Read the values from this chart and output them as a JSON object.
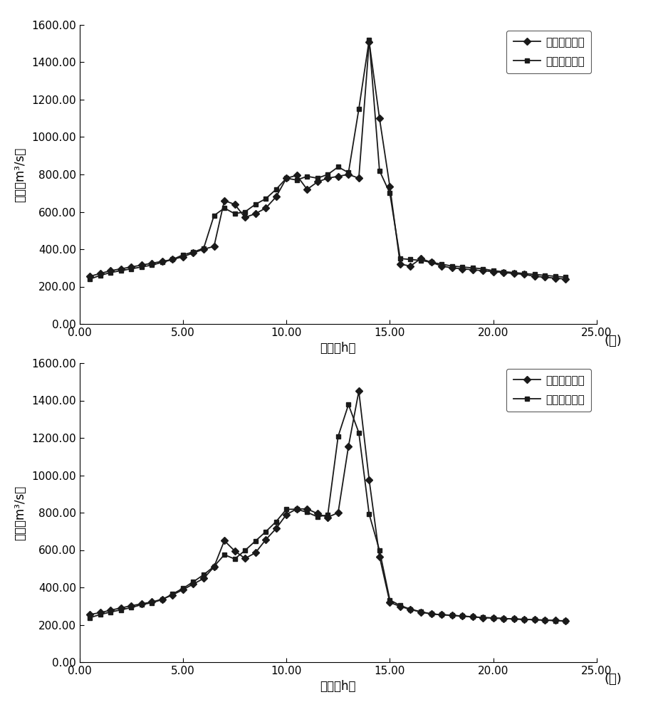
{
  "chart_a": {
    "measured_x": [
      0.5,
      1.0,
      1.5,
      2.0,
      2.5,
      3.0,
      3.5,
      4.0,
      4.5,
      5.0,
      5.5,
      6.0,
      6.5,
      7.0,
      7.5,
      8.0,
      8.5,
      9.0,
      9.5,
      10.0,
      10.5,
      11.0,
      11.5,
      12.0,
      12.5,
      13.0,
      13.5,
      14.0,
      14.5,
      15.0,
      15.5,
      16.0,
      16.5,
      17.0,
      17.5,
      18.0,
      18.5,
      19.0,
      19.5,
      20.0,
      20.5,
      21.0,
      21.5,
      22.0,
      22.5,
      23.0,
      23.5
    ],
    "measured_y": [
      255,
      270,
      285,
      295,
      305,
      315,
      325,
      335,
      345,
      360,
      380,
      400,
      415,
      660,
      640,
      570,
      590,
      620,
      680,
      780,
      795,
      720,
      760,
      780,
      790,
      800,
      780,
      1510,
      1100,
      735,
      320,
      310,
      350,
      330,
      310,
      300,
      295,
      290,
      285,
      280,
      275,
      270,
      265,
      255,
      250,
      245,
      240
    ],
    "predicted_x": [
      0.5,
      1.0,
      1.5,
      2.0,
      2.5,
      3.0,
      3.5,
      4.0,
      4.5,
      5.0,
      5.5,
      6.0,
      6.5,
      7.0,
      7.5,
      8.0,
      8.5,
      9.0,
      9.5,
      10.0,
      10.5,
      11.0,
      11.5,
      12.0,
      12.5,
      13.0,
      13.5,
      14.0,
      14.5,
      15.0,
      15.5,
      16.0,
      16.5,
      17.0,
      17.5,
      18.0,
      18.5,
      19.0,
      19.5,
      20.0,
      20.5,
      21.0,
      21.5,
      22.0,
      22.5,
      23.0,
      23.5
    ],
    "predicted_y": [
      240,
      260,
      275,
      285,
      295,
      305,
      315,
      330,
      345,
      370,
      385,
      405,
      580,
      620,
      590,
      600,
      640,
      670,
      720,
      780,
      770,
      790,
      780,
      800,
      840,
      810,
      1150,
      1520,
      820,
      700,
      350,
      345,
      340,
      330,
      320,
      310,
      305,
      300,
      295,
      285,
      280,
      275,
      270,
      265,
      260,
      255,
      250
    ]
  },
  "chart_b": {
    "measured_x": [
      0.5,
      1.0,
      1.5,
      2.0,
      2.5,
      3.0,
      3.5,
      4.0,
      4.5,
      5.0,
      5.5,
      6.0,
      6.5,
      7.0,
      7.5,
      8.0,
      8.5,
      9.0,
      9.5,
      10.0,
      10.5,
      11.0,
      11.5,
      12.0,
      12.5,
      13.0,
      13.5,
      14.0,
      14.5,
      15.0,
      15.5,
      16.0,
      16.5,
      17.0,
      17.5,
      18.0,
      18.5,
      19.0,
      19.5,
      20.0,
      20.5,
      21.0,
      21.5,
      22.0,
      22.5,
      23.0,
      23.5
    ],
    "measured_y": [
      255,
      265,
      278,
      290,
      302,
      312,
      322,
      337,
      360,
      388,
      418,
      448,
      510,
      650,
      595,
      555,
      585,
      655,
      715,
      790,
      820,
      820,
      795,
      775,
      800,
      1155,
      1450,
      975,
      565,
      320,
      298,
      282,
      268,
      258,
      254,
      250,
      246,
      242,
      238,
      236,
      233,
      231,
      229,
      227,
      225,
      223,
      221
    ],
    "predicted_x": [
      0.5,
      1.0,
      1.5,
      2.0,
      2.5,
      3.0,
      3.5,
      4.0,
      4.5,
      5.0,
      5.5,
      6.0,
      6.5,
      7.0,
      7.5,
      8.0,
      8.5,
      9.0,
      9.5,
      10.0,
      10.5,
      11.0,
      11.5,
      12.0,
      12.5,
      13.0,
      13.5,
      14.0,
      14.5,
      15.0,
      15.5,
      16.0,
      16.5,
      17.0,
      17.5,
      18.0,
      18.5,
      19.0,
      19.5,
      20.0,
      20.5,
      21.0,
      21.5,
      22.0,
      22.5,
      23.0,
      23.5
    ],
    "predicted_y": [
      238,
      255,
      268,
      280,
      292,
      308,
      318,
      335,
      365,
      395,
      430,
      468,
      512,
      575,
      552,
      598,
      648,
      698,
      752,
      818,
      818,
      802,
      778,
      788,
      1208,
      1378,
      1228,
      792,
      598,
      333,
      303,
      283,
      270,
      258,
      254,
      251,
      247,
      243,
      239,
      237,
      234,
      231,
      229,
      227,
      225,
      222,
      220
    ]
  },
  "xlim": [
    0,
    25
  ],
  "ylim": [
    0,
    1600
  ],
  "xticks": [
    0.0,
    5.0,
    10.0,
    15.0,
    20.0,
    25.0
  ],
  "yticks": [
    0.0,
    200.0,
    400.0,
    600.0,
    800.0,
    1000.0,
    1200.0,
    1400.0,
    1600.0
  ],
  "xlabel": "时间（h）",
  "ylabel": "流量（m³/s）",
  "legend_measured": "实测洪水流量",
  "legend_predicted": "预测洪水流量",
  "label_a": "(ａ)",
  "label_b": "(ｂ)",
  "line_color": "#1a1a1a",
  "bg_color": "#ffffff",
  "tick_fontsize": 11,
  "label_fontsize": 12,
  "legend_fontsize": 11
}
